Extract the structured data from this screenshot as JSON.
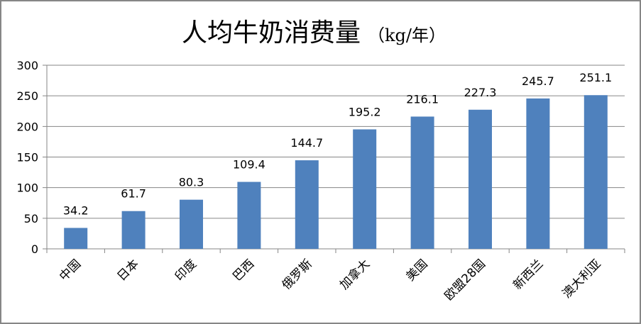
{
  "chart_data": {
    "type": "bar",
    "title": "人均牛奶消费量",
    "title_unit": "（kg/年）",
    "categories": [
      "中国",
      "日本",
      "印度",
      "巴西",
      "俄罗斯",
      "加拿大",
      "美国",
      "欧盟28国",
      "新西兰",
      "澳大利亚"
    ],
    "values": [
      34.2,
      61.7,
      80.3,
      109.4,
      144.7,
      195.2,
      216.1,
      227.3,
      245.7,
      251.1
    ],
    "data_labels": [
      "34.2",
      "61.7",
      "80.3",
      "109.4",
      "144.7",
      "195.2",
      "216.1",
      "227.3",
      "245.7",
      "251.1"
    ],
    "ylim": [
      0,
      300
    ],
    "yticks": [
      "0",
      "50",
      "100",
      "150",
      "200",
      "250",
      "300"
    ],
    "grid": true,
    "legend": "none",
    "bar_color": "#4F81BD",
    "grid_color": "#868686"
  }
}
